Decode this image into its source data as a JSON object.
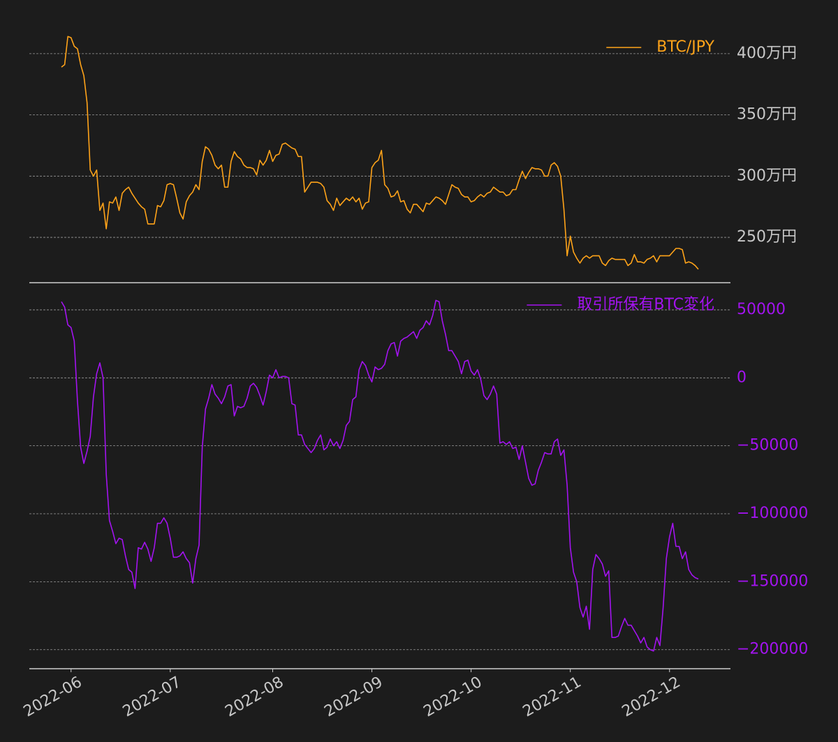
{
  "chart_data": [
    {
      "type": "line",
      "categories": [
        null,
        null,
        null,
        "2022-06",
        null,
        null,
        null,
        null,
        null,
        null,
        null,
        null,
        null,
        null,
        null,
        null,
        null,
        null,
        null,
        null,
        null,
        null,
        null,
        null,
        null,
        null,
        null,
        null,
        null,
        null,
        null,
        null,
        null,
        null,
        "2022-07",
        null,
        null,
        null,
        null,
        null,
        null,
        null,
        null,
        null,
        null,
        null,
        null,
        null,
        null,
        null,
        null,
        null,
        null,
        null,
        null,
        null,
        null,
        null,
        null,
        null,
        null,
        null,
        null,
        null,
        null,
        null,
        "2022-08",
        null,
        null,
        null,
        null,
        null,
        null,
        null,
        null,
        null,
        null,
        null,
        null,
        null,
        null,
        null,
        null,
        null,
        null,
        null,
        null,
        null,
        null,
        null,
        null,
        null,
        null,
        null,
        null,
        null,
        null,
        "2022-09",
        null,
        null,
        null,
        null,
        null,
        null,
        null,
        null,
        null,
        null,
        null,
        null,
        null,
        null,
        null,
        null,
        null,
        null,
        null,
        null,
        null,
        null,
        null,
        null,
        null,
        null,
        null,
        null,
        null,
        null,
        "2022-10",
        null,
        null,
        null,
        null,
        null,
        null,
        null,
        null,
        null,
        null,
        null,
        null,
        null,
        null,
        null,
        null,
        null,
        null,
        null,
        null,
        null,
        null,
        null,
        null,
        null,
        null,
        null,
        null,
        null,
        null,
        "2022-11",
        null,
        null,
        null,
        null,
        null,
        null,
        null,
        null,
        null,
        null,
        null,
        null,
        null,
        null,
        null,
        null,
        null,
        null,
        null,
        null,
        null,
        null,
        null,
        null,
        null,
        null,
        null,
        null,
        null,
        null,
        "2022-12",
        null,
        null,
        null,
        null,
        null,
        null,
        null,
        null,
        null
      ],
      "series": [
        {
          "name": "BTC/JPY",
          "color": "#ffa319",
          "values": [
            389,
            391,
            414,
            413,
            406,
            404,
            391,
            382,
            360,
            305,
            300,
            305,
            272,
            278,
            257,
            279,
            278,
            283,
            272,
            286,
            289,
            291,
            286,
            282,
            278,
            275,
            273,
            261,
            261,
            261,
            276,
            275,
            280,
            293,
            294,
            293,
            282,
            270,
            265,
            279,
            284,
            287,
            293,
            289,
            312,
            324,
            322,
            317,
            309,
            306,
            309,
            291,
            291,
            312,
            320,
            316,
            314,
            309,
            307,
            307,
            306,
            301,
            313,
            309,
            313,
            321,
            312,
            317,
            318,
            326,
            327,
            325,
            323,
            322,
            316,
            316,
            287,
            291,
            295,
            295,
            295,
            294,
            291,
            280,
            277,
            272,
            282,
            276,
            279,
            282,
            280,
            283,
            279,
            282,
            273,
            278,
            279,
            307,
            311,
            313,
            321,
            293,
            290,
            283,
            284,
            288,
            279,
            280,
            273,
            270,
            277,
            277,
            274,
            271,
            278,
            277,
            280,
            283,
            282,
            280,
            277,
            285,
            293,
            291,
            290,
            285,
            283,
            283,
            279,
            280,
            283,
            285,
            283,
            286,
            287,
            291,
            289,
            287,
            287,
            284,
            285,
            289,
            289,
            297,
            304,
            298,
            303,
            307,
            306,
            306,
            305,
            300,
            300,
            309,
            311,
            308,
            300,
            273,
            235,
            251,
            238,
            233,
            229,
            233,
            235,
            233,
            235,
            235,
            235,
            229,
            227,
            231,
            233,
            232,
            232,
            232,
            232,
            227,
            229,
            236,
            230,
            230,
            229,
            232,
            233,
            235,
            230,
            235,
            235,
            235,
            235,
            238,
            241,
            241,
            240,
            229,
            230,
            229,
            227,
            224
          ]
        }
      ],
      "ylim": [
        213,
        421
      ],
      "yticks": [
        {
          "value": 250,
          "label": "250万円"
        },
        {
          "value": 300,
          "label": "300万円"
        },
        {
          "value": 350,
          "label": "350万円"
        },
        {
          "value": 400,
          "label": "400万円"
        }
      ],
      "grid": true,
      "legend": "upper right"
    },
    {
      "type": "line",
      "categories": [
        null,
        null,
        null,
        "2022-06",
        null,
        null,
        null,
        null,
        null,
        null,
        null,
        null,
        null,
        null,
        null,
        null,
        null,
        null,
        null,
        null,
        null,
        null,
        null,
        null,
        null,
        null,
        null,
        null,
        null,
        null,
        null,
        null,
        null,
        null,
        "2022-07",
        null,
        null,
        null,
        null,
        null,
        null,
        null,
        null,
        null,
        null,
        null,
        null,
        null,
        null,
        null,
        null,
        null,
        null,
        null,
        null,
        null,
        null,
        null,
        null,
        null,
        null,
        null,
        null,
        null,
        null,
        null,
        "2022-08",
        null,
        null,
        null,
        null,
        null,
        null,
        null,
        null,
        null,
        null,
        null,
        null,
        null,
        null,
        null,
        null,
        null,
        null,
        null,
        null,
        null,
        null,
        null,
        null,
        null,
        null,
        null,
        null,
        null,
        null,
        "2022-09",
        null,
        null,
        null,
        null,
        null,
        null,
        null,
        null,
        null,
        null,
        null,
        null,
        null,
        null,
        null,
        null,
        null,
        null,
        null,
        null,
        null,
        null,
        null,
        null,
        null,
        null,
        null,
        null,
        null,
        null,
        "2022-10",
        null,
        null,
        null,
        null,
        null,
        null,
        null,
        null,
        null,
        null,
        null,
        null,
        null,
        null,
        null,
        null,
        null,
        null,
        null,
        null,
        null,
        null,
        null,
        null,
        null,
        null,
        null,
        null,
        null,
        null,
        "2022-11",
        null,
        null,
        null,
        null,
        null,
        null,
        null,
        null,
        null,
        null,
        null,
        null,
        null,
        null,
        null,
        null,
        null,
        null,
        null,
        null,
        null,
        null,
        null,
        null,
        null,
        null,
        null,
        null,
        null,
        null,
        "2022-12",
        null,
        null,
        null,
        null,
        null,
        null,
        null,
        null,
        null
      ],
      "series": [
        {
          "name": "取引所保有BTC変化",
          "color": "#a313f0",
          "values": [
            56000,
            52000,
            39000,
            37000,
            27000,
            -17000,
            -51000,
            -63000,
            -54000,
            -43000,
            -14000,
            3000,
            11000,
            0,
            -71000,
            -105000,
            -113000,
            -122000,
            -118000,
            -119000,
            -131000,
            -141000,
            -143000,
            -155000,
            -125000,
            -126000,
            -121000,
            -126000,
            -135000,
            -125000,
            -107000,
            -107000,
            -103000,
            -107000,
            -118000,
            -132000,
            -132000,
            -131000,
            -128000,
            -133000,
            -136000,
            -151000,
            -133000,
            -123000,
            -51000,
            -23000,
            -15000,
            -5000,
            -12000,
            -15000,
            -19000,
            -14000,
            -6000,
            -5000,
            -28000,
            -21000,
            -22000,
            -21000,
            -15000,
            -6000,
            -4000,
            -7000,
            -13000,
            -20000,
            -10000,
            2000,
            0,
            6000,
            0,
            1000,
            1000,
            0,
            -19000,
            -20000,
            -42000,
            -42000,
            -49000,
            -52000,
            -55000,
            -52000,
            -46000,
            -42000,
            -53000,
            -51000,
            -45000,
            -50000,
            -47000,
            -52000,
            -46000,
            -35000,
            -32000,
            -16000,
            -14000,
            6000,
            12000,
            9000,
            2000,
            -3000,
            8000,
            6000,
            7000,
            10000,
            20000,
            25000,
            26000,
            16000,
            27000,
            29000,
            30000,
            32000,
            34000,
            29000,
            35000,
            37000,
            42000,
            39000,
            46000,
            57000,
            56000,
            42000,
            32000,
            20000,
            20000,
            16000,
            12000,
            3000,
            12000,
            13000,
            5000,
            2000,
            6000,
            -1000,
            -13000,
            -16000,
            -12000,
            -6000,
            -12000,
            -48000,
            -47000,
            -49000,
            -47000,
            -52000,
            -51000,
            -60000,
            -50000,
            -62000,
            -74000,
            -79000,
            -78000,
            -68000,
            -62000,
            -55000,
            -56000,
            -56000,
            -47000,
            -45000,
            -57000,
            -53000,
            -79000,
            -125000,
            -143000,
            -150000,
            -169000,
            -176000,
            -168000,
            -185000,
            -141000,
            -130000,
            -133000,
            -137000,
            -146000,
            -142000,
            -191000,
            -191000,
            -190000,
            -183000,
            -177000,
            -182000,
            -182000,
            -186000,
            -190000,
            -195000,
            -191000,
            -198000,
            -200000,
            -201000,
            -191000,
            -197000,
            -169000,
            -133000,
            -117000,
            -107000,
            -124000,
            -124000,
            -133000,
            -128000,
            -141000,
            -145000,
            -147000,
            -148000
          ]
        }
      ],
      "ylim": [
        -214000,
        70000
      ],
      "yticks": [
        {
          "value": -200000,
          "label": "−200000"
        },
        {
          "value": -150000,
          "label": "−150000"
        },
        {
          "value": -100000,
          "label": "−100000"
        },
        {
          "value": -50000,
          "label": "−50000"
        },
        0,
        50000
      ],
      "grid": true,
      "legend": "upper right"
    }
  ]
}
